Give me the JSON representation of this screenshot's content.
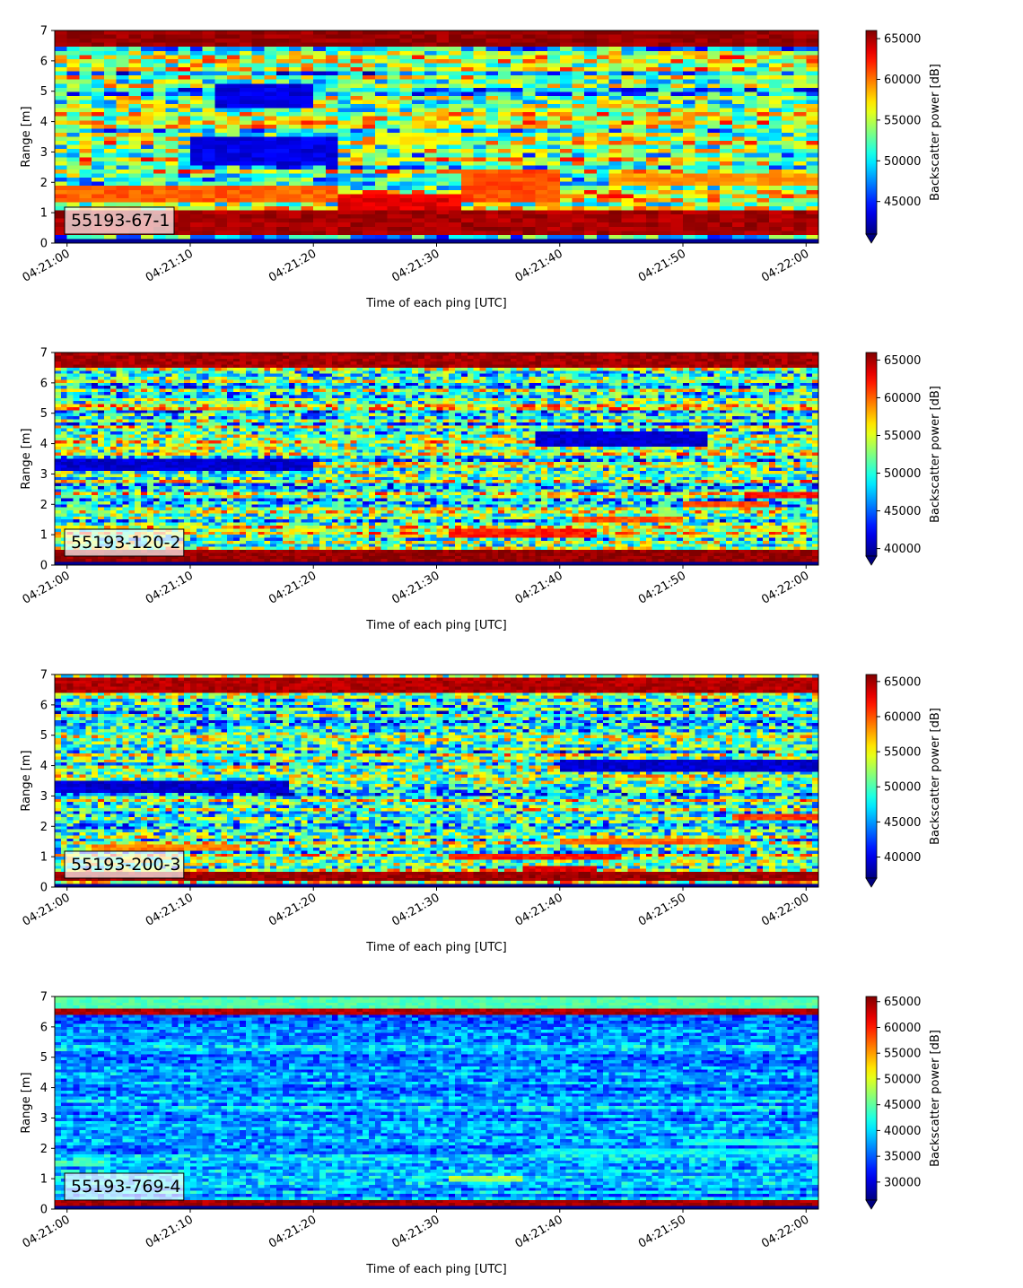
{
  "chart_data": [
    {
      "type": "heatmap",
      "label": "55193-67-1",
      "xlabel": "Time of each ping [UTC]",
      "ylabel": "Range [m]",
      "xticks": [
        "04:21:00",
        "04:21:10",
        "04:21:20",
        "04:21:30",
        "04:21:40",
        "04:21:50",
        "04:22:00"
      ],
      "yticks": [
        0,
        1,
        2,
        3,
        4,
        5,
        6,
        7
      ],
      "ylim": [
        0,
        7
      ],
      "xlim_seconds": [
        -1,
        61
      ],
      "n_pings": 62,
      "range_bins": 52,
      "colorbar": {
        "label": "Backscatter power [dB]",
        "min": 41000,
        "max": 66000,
        "ticks": [
          45000,
          50000,
          55000,
          60000,
          65000
        ],
        "colormap": "jet",
        "extend": "min"
      },
      "features": [
        {
          "kind": "band",
          "y0": 0.25,
          "y1": 1.05,
          "level": 0.96
        },
        {
          "kind": "band",
          "y0": 6.5,
          "y1": 7.0,
          "level": 0.98
        },
        {
          "kind": "band",
          "y0": 1.3,
          "y1": 1.95,
          "level": 0.78,
          "t0": -1,
          "t1": 22
        },
        {
          "kind": "band",
          "y0": 1.1,
          "y1": 1.6,
          "level": 0.9,
          "t0": 22,
          "t1": 32
        },
        {
          "kind": "band",
          "y0": 1.3,
          "y1": 2.4,
          "level": 0.8,
          "t0": 32,
          "t1": 40
        },
        {
          "kind": "band",
          "y0": 1.9,
          "y1": 2.3,
          "level": 0.72,
          "t0": 44,
          "t1": 61
        },
        {
          "kind": "band",
          "y0": 3.2,
          "y1": 3.6,
          "level": 0.62,
          "t0": 25,
          "t1": 32
        },
        {
          "kind": "band",
          "y0": 2.5,
          "y1": 3.5,
          "level": 0.1,
          "t0": 10,
          "t1": 22
        },
        {
          "kind": "band",
          "y0": 4.5,
          "y1": 5.2,
          "level": 0.1,
          "t0": 12,
          "t1": 20
        }
      ]
    },
    {
      "type": "heatmap",
      "label": "55193-120-2",
      "xlabel": "Time of each ping [UTC]",
      "ylabel": "Range [m]",
      "xticks": [
        "04:21:00",
        "04:21:10",
        "04:21:20",
        "04:21:30",
        "04:21:40",
        "04:21:50",
        "04:22:00"
      ],
      "yticks": [
        0,
        1,
        2,
        3,
        4,
        5,
        6,
        7
      ],
      "ylim": [
        0,
        7
      ],
      "xlim_seconds": [
        -1,
        61
      ],
      "n_pings": 124,
      "range_bins": 70,
      "colorbar": {
        "label": "Backscatter power [dB]",
        "min": 39000,
        "max": 66000,
        "ticks": [
          40000,
          45000,
          50000,
          55000,
          60000,
          65000
        ],
        "colormap": "jet",
        "extend": "min"
      },
      "features": [
        {
          "kind": "band",
          "y0": 0.15,
          "y1": 0.55,
          "level": 0.98
        },
        {
          "kind": "band",
          "y0": 6.5,
          "y1": 7.0,
          "level": 0.96
        },
        {
          "kind": "band",
          "y0": 0.9,
          "y1": 1.15,
          "level": 0.85,
          "t0": 31,
          "t1": 43
        },
        {
          "kind": "band",
          "y0": 1.4,
          "y1": 1.6,
          "level": 0.8,
          "t0": 41,
          "t1": 50
        },
        {
          "kind": "band",
          "y0": 1.9,
          "y1": 2.05,
          "level": 0.8,
          "t0": 50,
          "t1": 57
        },
        {
          "kind": "band",
          "y0": 2.25,
          "y1": 2.4,
          "level": 0.85,
          "t0": 55,
          "t1": 61
        },
        {
          "kind": "band",
          "y0": 3.1,
          "y1": 3.5,
          "level": 0.08,
          "t0": -1,
          "t1": 20
        },
        {
          "kind": "band",
          "y0": 3.9,
          "y1": 4.4,
          "level": 0.08,
          "t0": 38,
          "t1": 52
        }
      ]
    },
    {
      "type": "heatmap",
      "label": "55193-200-3",
      "xlabel": "Time of each ping [UTC]",
      "ylabel": "Range [m]",
      "xticks": [
        "04:21:00",
        "04:21:10",
        "04:21:20",
        "04:21:30",
        "04:21:40",
        "04:21:50",
        "04:22:00"
      ],
      "yticks": [
        0,
        1,
        2,
        3,
        4,
        5,
        6,
        7
      ],
      "ylim": [
        0,
        7
      ],
      "xlim_seconds": [
        -1,
        61
      ],
      "n_pings": 124,
      "range_bins": 70,
      "colorbar": {
        "label": "Backscatter power [dB]",
        "min": 37000,
        "max": 66000,
        "ticks": [
          40000,
          45000,
          50000,
          55000,
          60000,
          65000
        ],
        "colormap": "jet",
        "extend": "min"
      },
      "features": [
        {
          "kind": "band",
          "y0": 0.2,
          "y1": 0.5,
          "level": 0.97
        },
        {
          "kind": "band",
          "y0": 6.4,
          "y1": 6.9,
          "level": 0.95
        },
        {
          "kind": "band",
          "y0": 0.9,
          "y1": 1.1,
          "level": 0.85,
          "t0": 31,
          "t1": 45
        },
        {
          "kind": "band",
          "y0": 0.5,
          "y1": 0.7,
          "level": 0.9,
          "t0": 37,
          "t1": 43
        },
        {
          "kind": "band",
          "y0": 1.2,
          "y1": 1.4,
          "level": 0.75,
          "t0": 2,
          "t1": 14
        },
        {
          "kind": "band",
          "y0": 1.4,
          "y1": 1.6,
          "level": 0.78,
          "t0": 40,
          "t1": 55
        },
        {
          "kind": "band",
          "y0": 2.2,
          "y1": 2.4,
          "level": 0.82,
          "t0": 54,
          "t1": 61
        },
        {
          "kind": "band",
          "y0": 3.1,
          "y1": 3.5,
          "level": 0.08,
          "t0": -1,
          "t1": 18
        },
        {
          "kind": "band",
          "y0": 3.8,
          "y1": 4.2,
          "level": 0.08,
          "t0": 40,
          "t1": 61
        }
      ]
    },
    {
      "type": "heatmap",
      "label": "55193-769-4",
      "xlabel": "Time of each ping [UTC]",
      "ylabel": "Range [m]",
      "xticks": [
        "04:21:00",
        "04:21:10",
        "04:21:20",
        "04:21:30",
        "04:21:40",
        "04:21:50",
        "04:22:00"
      ],
      "yticks": [
        0,
        1,
        2,
        3,
        4,
        5,
        6,
        7
      ],
      "ylim": [
        0,
        7
      ],
      "xlim_seconds": [
        -1,
        61
      ],
      "n_pings": 124,
      "range_bins": 70,
      "colorbar": {
        "label": "Backscatter power [dB]",
        "min": 26500,
        "max": 66000,
        "ticks": [
          30000,
          35000,
          40000,
          45000,
          50000,
          55000,
          60000,
          65000
        ],
        "colormap": "jet",
        "extend": "min"
      },
      "features": [
        {
          "kind": "band",
          "y0": 0.15,
          "y1": 0.35,
          "level": 0.96
        },
        {
          "kind": "band",
          "y0": 6.4,
          "y1": 6.65,
          "level": 0.95
        },
        {
          "kind": "band",
          "y0": 6.65,
          "y1": 7.0,
          "level": 0.45
        },
        {
          "kind": "band",
          "y0": 1.8,
          "y1": 2.0,
          "level": 0.38,
          "t0": 38,
          "t1": 61
        },
        {
          "kind": "band",
          "y0": 2.1,
          "y1": 2.3,
          "level": 0.4,
          "t0": 50,
          "t1": 61
        },
        {
          "kind": "band",
          "y0": 0.9,
          "y1": 1.1,
          "level": 0.55,
          "t0": 31,
          "t1": 37
        },
        {
          "kind": "band",
          "y0": 1.4,
          "y1": 1.6,
          "level": 0.45,
          "t0": -1,
          "t1": 3
        }
      ]
    }
  ]
}
